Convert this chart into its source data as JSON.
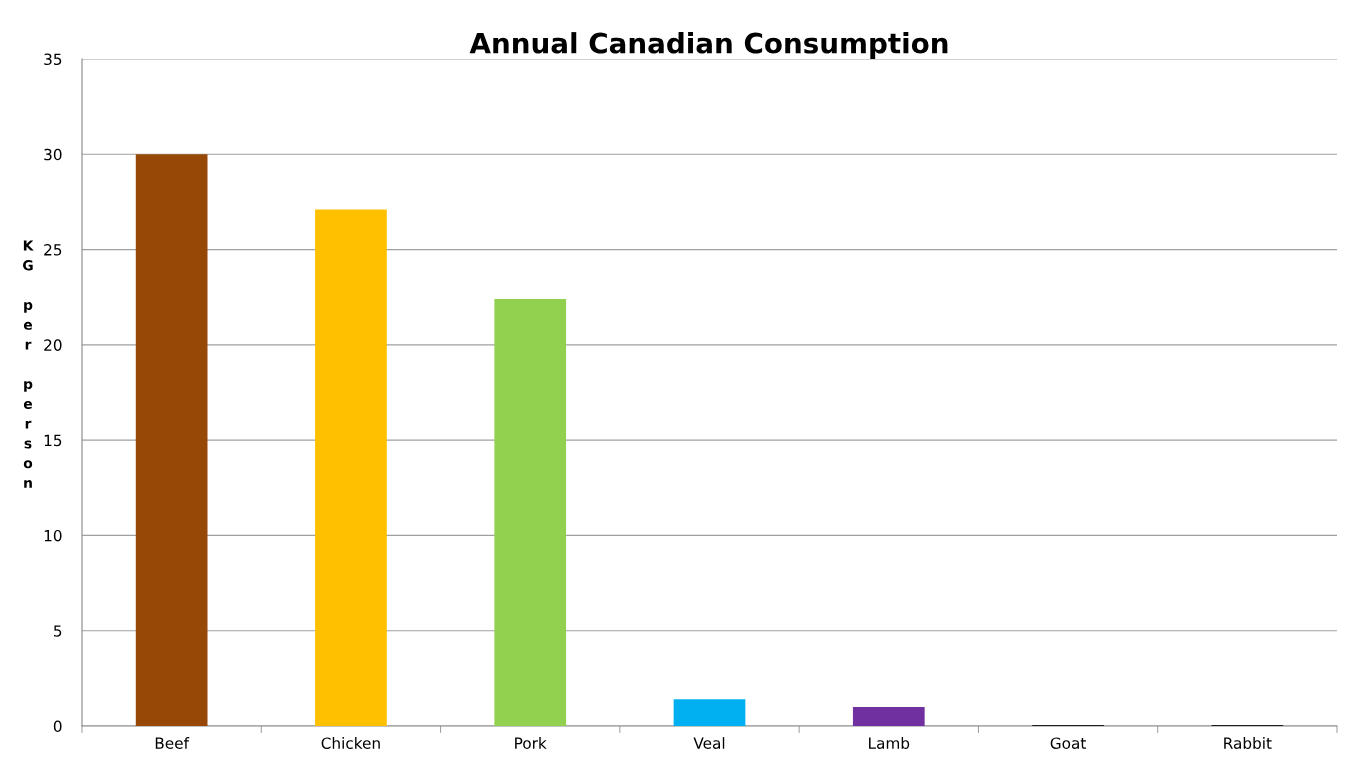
{
  "chart_data": {
    "type": "bar",
    "title": "Annual Canadian Consumption",
    "ylabel": "KG per person",
    "categories": [
      "Beef",
      "Chicken",
      "Pork",
      "Veal",
      "Lamb",
      "Goat",
      "Rabbit"
    ],
    "values": [
      30.0,
      27.1,
      22.4,
      1.4,
      1.0,
      0.05,
      0.05
    ],
    "colors": [
      "#974706",
      "#ffc000",
      "#92d050",
      "#00b0f0",
      "#7030a0",
      "#1f1f1f",
      "#1f1f1f"
    ],
    "ylim": [
      0,
      35
    ],
    "yticks": [
      0,
      5,
      10,
      15,
      20,
      25,
      30,
      35
    ],
    "grid": "y",
    "legend": false
  }
}
